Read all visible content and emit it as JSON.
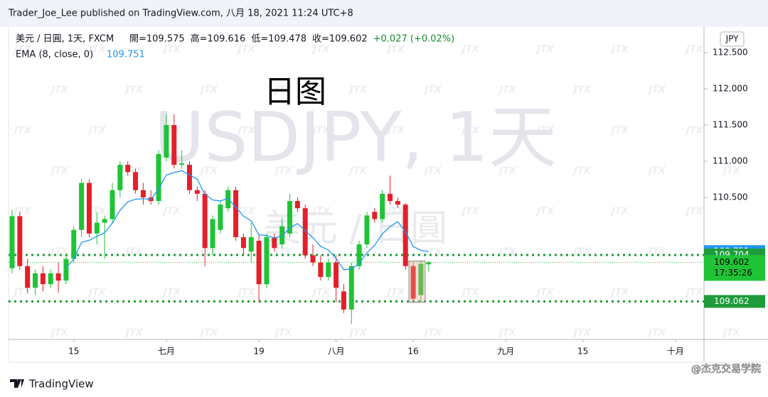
{
  "chart_data": {
    "type": "candlestick",
    "published": "Trader_Joe_Lee published on TradingView.com, 八月 18, 2021 11:24 UTC+8",
    "symbol": "美元 / 日圓, 1天, FXCM",
    "ohlc_labels": [
      "開=109.575",
      "高=109.616",
      "低=109.478",
      "收=109.602",
      "+0.027 (+0.02%)"
    ],
    "watermark": "USDJPY, 1天",
    "watermark_sub": "美元 / 日圓",
    "watermark_tile": "JTX",
    "annotation": "日图",
    "currency": "JPY",
    "brand": "TradingView",
    "credit": "@杰克交易学院",
    "up_color": "#1fc436",
    "down_color": "#e3202a",
    "open": [
      109.52,
      110.24,
      109.55,
      109.25,
      109.45,
      109.3,
      109.45,
      109.35,
      109.65,
      110.05,
      110.7,
      110.0,
      110.15,
      110.2,
      110.6,
      110.95,
      110.85,
      110.6,
      110.5,
      110.45,
      111.05,
      111.5,
      110.95,
      110.95,
      110.6,
      110.55,
      109.8,
      110.05,
      110.35,
      110.6,
      109.95,
      109.75,
      109.9,
      109.3,
      109.95,
      109.85,
      110.0,
      110.45,
      110.35,
      109.7,
      109.6,
      109.4,
      109.6,
      109.2,
      108.95,
      109.55,
      109.85,
      110.3,
      110.2,
      110.55,
      110.45,
      110.4,
      109.55,
      109.15,
      109.575
    ],
    "high": [
      110.33,
      110.3,
      109.65,
      109.5,
      109.55,
      109.5,
      109.6,
      109.7,
      110.1,
      110.75,
      110.75,
      110.3,
      110.25,
      110.7,
      111.0,
      111.0,
      110.9,
      110.7,
      110.6,
      111.15,
      111.65,
      111.65,
      111.15,
      111.0,
      110.65,
      110.6,
      110.25,
      110.45,
      110.65,
      110.65,
      110.0,
      110.15,
      110.0,
      110.0,
      110.0,
      110.2,
      110.55,
      110.5,
      110.4,
      109.85,
      109.7,
      109.65,
      109.7,
      109.3,
      109.6,
      109.9,
      110.3,
      110.35,
      110.6,
      110.8,
      110.5,
      110.42,
      109.6,
      109.62,
      109.616
    ],
    "low": [
      109.45,
      109.5,
      109.18,
      109.15,
      109.2,
      109.25,
      109.18,
      109.3,
      109.6,
      109.95,
      109.95,
      109.85,
      109.65,
      110.15,
      110.5,
      110.8,
      110.55,
      110.4,
      110.4,
      110.4,
      111.0,
      110.9,
      110.9,
      110.55,
      110.45,
      109.55,
      109.7,
      110.0,
      110.3,
      109.9,
      109.7,
      109.6,
      109.05,
      109.25,
      109.75,
      109.8,
      109.95,
      110.3,
      109.65,
      109.55,
      109.35,
      109.35,
      109.05,
      108.9,
      108.75,
      109.5,
      109.8,
      110.15,
      110.15,
      110.4,
      110.35,
      109.5,
      109.05,
      109.05,
      109.478
    ],
    "close": [
      110.24,
      109.55,
      109.25,
      109.45,
      109.3,
      109.45,
      109.35,
      109.65,
      110.05,
      110.7,
      110.0,
      110.15,
      110.2,
      110.6,
      110.95,
      110.85,
      110.6,
      110.5,
      110.45,
      111.1,
      111.5,
      110.95,
      110.97,
      110.6,
      110.55,
      109.8,
      110.2,
      110.4,
      110.6,
      109.95,
      109.8,
      109.95,
      109.3,
      109.95,
      109.8,
      110.1,
      110.45,
      110.35,
      109.7,
      109.6,
      109.4,
      109.6,
      109.25,
      108.95,
      109.55,
      109.85,
      110.25,
      110.2,
      110.55,
      110.45,
      110.4,
      109.55,
      109.1,
      109.58,
      109.602
    ],
    "ema": {
      "name": "EMA (8, close, 0)",
      "color": "#2196f3",
      "value_label": "109.751",
      "values": [
        null,
        null,
        null,
        null,
        null,
        null,
        null,
        109.53,
        109.645,
        109.879,
        109.906,
        109.96,
        110.013,
        110.143,
        110.322,
        110.439,
        110.475,
        110.481,
        110.474,
        110.613,
        110.81,
        110.841,
        110.87,
        110.81,
        110.752,
        110.541,
        110.465,
        110.451,
        110.484,
        110.365,
        110.24,
        110.176,
        109.981,
        109.974,
        109.935,
        109.972,
        110.078,
        110.138,
        110.041,
        109.943,
        109.822,
        109.773,
        109.657,
        109.5,
        109.511,
        109.586,
        109.733,
        109.837,
        109.995,
        110.096,
        110.163,
        110.027,
        109.821,
        109.767,
        109.751
      ]
    },
    "levels": [
      {
        "value": 109.704,
        "label": "109.704"
      },
      {
        "value": 109.062,
        "label": "109.062"
      }
    ],
    "level_color": "#1e9b3a",
    "last_price": {
      "value": 109.602,
      "label": "109.602",
      "countdown": "17:35:26"
    },
    "xlim": [
      -0.46,
      89.7
    ],
    "xticks": [
      {
        "value": 8,
        "label": "15"
      },
      {
        "value": 20,
        "label": "七月"
      },
      {
        "value": 32,
        "label": "19"
      },
      {
        "value": 42,
        "label": "八月"
      },
      {
        "value": 52,
        "label": "16"
      },
      {
        "value": 64,
        "label": "九月"
      },
      {
        "value": 74,
        "label": "15"
      },
      {
        "value": 86,
        "label": "十月"
      }
    ],
    "ylim": [
      108.536,
      112.855
    ],
    "yticks": [
      {
        "value": 110.5,
        "label": "110.500"
      },
      {
        "value": 111,
        "label": "111.000"
      },
      {
        "value": 111.5,
        "label": "111.500"
      },
      {
        "value": 112,
        "label": "112.000"
      },
      {
        "value": 112.5,
        "label": "112.500"
      }
    ]
  }
}
